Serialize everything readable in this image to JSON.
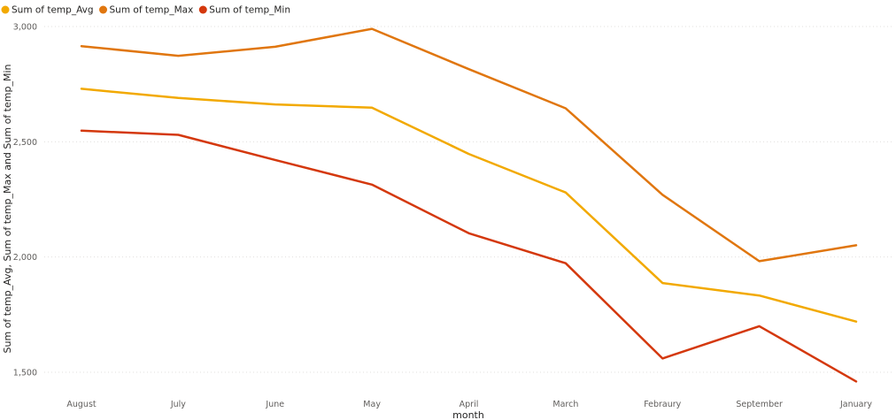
{
  "chart_data": {
    "type": "line",
    "categories": [
      "August",
      "July",
      "June",
      "May",
      "April",
      "March",
      "Febraury",
      "September",
      "January"
    ],
    "series": [
      {
        "name": "Sum of temp_Avg",
        "color": "#F2A900",
        "values": [
          2730,
          2690,
          2662,
          2648,
          2447,
          2280,
          1887,
          1833,
          1720
        ]
      },
      {
        "name": "Sum of temp_Max",
        "color": "#E0760F",
        "values": [
          2915,
          2873,
          2912,
          2990,
          2815,
          2645,
          2270,
          1982,
          2051
        ]
      },
      {
        "name": "Sum of temp_Min",
        "color": "#D4380D",
        "values": [
          2548,
          2530,
          2421,
          2314,
          2103,
          1973,
          1560,
          1700,
          1460
        ]
      }
    ],
    "xlabel": "month",
    "ylabel": "Sum of temp_Avg, Sum of temp_Max and Sum of temp_Min",
    "ylim": [
      1500,
      3000
    ],
    "yticks": [
      1500,
      2000,
      2500,
      3000
    ],
    "ytick_labels": [
      "1,500",
      "2,000",
      "2,500",
      "3,000"
    ],
    "grid": true,
    "legend_position": "top-left"
  }
}
